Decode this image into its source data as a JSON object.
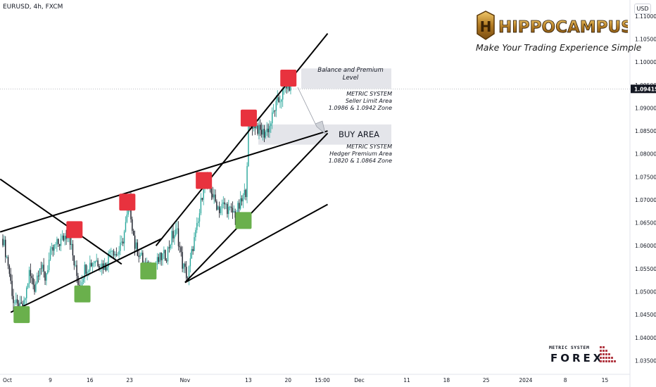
{
  "header": {
    "symbol": "EURUSD, 4h, FXCM",
    "currency": "USD"
  },
  "brand": {
    "name": "HIPPOCAMPUS AI",
    "tagline": "Make Your Trading Experience Simple",
    "logo_letter": "H"
  },
  "watermark": {
    "line1": "METRIC SYSTEM",
    "line2": "FOREX"
  },
  "annotations": {
    "balance_label": [
      "Balance and Premium",
      "Level"
    ],
    "seller_block": [
      "METRIC SYSTEM",
      "Seller Limit Area",
      "1.0986 & 1.0942 Zone"
    ],
    "buy_label": "BUY AREA",
    "hedger_block": [
      "METRIC SYSTEM",
      "Hedger Premium Area",
      "1.0820 & 1.0864 Zone"
    ]
  },
  "chart_data": {
    "type": "candlestick",
    "title": "EURUSD, 4h, FXCM",
    "x_ticks": [
      {
        "label": "Oct",
        "bar": 0
      },
      {
        "label": "9",
        "bar": 36
      },
      {
        "label": "16",
        "bar": 66
      },
      {
        "label": "23",
        "bar": 96
      },
      {
        "label": "Nov",
        "bar": 138
      },
      {
        "label": "13",
        "bar": 186
      },
      {
        "label": "20",
        "bar": 216
      },
      {
        "label": "15:00",
        "bar": 242
      },
      {
        "label": "Dec",
        "bar": 270
      },
      {
        "label": "11",
        "bar": 306
      },
      {
        "label": "18",
        "bar": 336
      },
      {
        "label": "25",
        "bar": 366
      },
      {
        "label": "2024",
        "bar": 396
      },
      {
        "label": "8",
        "bar": 426
      },
      {
        "label": "15",
        "bar": 456
      }
    ],
    "y_ticks": [
      1.035,
      1.04,
      1.045,
      1.05,
      1.055,
      1.06,
      1.065,
      1.07,
      1.075,
      1.08,
      1.085,
      1.09,
      1.095,
      1.1,
      1.105,
      1.11
    ],
    "ylim": [
      1.032,
      1.1135
    ],
    "last_price": 1.09415,
    "last_price_label": "1.09415",
    "colors": {
      "up": "#26a69a",
      "down": "#131722",
      "sell_box": "#e8323e",
      "buy_box": "#6ab04c",
      "price_tag": "#131722"
    },
    "price_path": [
      [
        0,
        1.0615
      ],
      [
        4,
        1.056
      ],
      [
        8,
        1.048
      ],
      [
        12,
        1.046
      ],
      [
        16,
        1.047
      ],
      [
        20,
        1.054
      ],
      [
        24,
        1.051
      ],
      [
        28,
        1.056
      ],
      [
        32,
        1.053
      ],
      [
        36,
        1.058
      ],
      [
        40,
        1.06
      ],
      [
        44,
        1.061
      ],
      [
        48,
        1.0625
      ],
      [
        50,
        1.063
      ],
      [
        54,
        1.056
      ],
      [
        58,
        1.051
      ],
      [
        62,
        1.055
      ],
      [
        66,
        1.056
      ],
      [
        70,
        1.057
      ],
      [
        74,
        1.056
      ],
      [
        78,
        1.0555
      ],
      [
        82,
        1.06
      ],
      [
        86,
        1.058
      ],
      [
        90,
        1.06
      ],
      [
        94,
        1.066
      ],
      [
        96,
        1.069
      ],
      [
        100,
        1.06
      ],
      [
        104,
        1.058
      ],
      [
        108,
        1.0555
      ],
      [
        112,
        1.0545
      ],
      [
        116,
        1.056
      ],
      [
        120,
        1.0575
      ],
      [
        124,
        1.058
      ],
      [
        128,
        1.062
      ],
      [
        132,
        1.063
      ],
      [
        136,
        1.056
      ],
      [
        140,
        1.053
      ],
      [
        144,
        1.06
      ],
      [
        148,
        1.065
      ],
      [
        152,
        1.0735
      ],
      [
        156,
        1.074
      ],
      [
        160,
        1.07
      ],
      [
        164,
        1.068
      ],
      [
        168,
        1.069
      ],
      [
        172,
        1.0675
      ],
      [
        176,
        1.067
      ],
      [
        180,
        1.069
      ],
      [
        184,
        1.072
      ],
      [
        186,
        1.085
      ],
      [
        190,
        1.087
      ],
      [
        194,
        1.085
      ],
      [
        198,
        1.0845
      ],
      [
        202,
        1.086
      ],
      [
        206,
        1.09
      ],
      [
        210,
        1.092
      ],
      [
        214,
        1.0945
      ],
      [
        216,
        1.0955
      ],
      [
        218,
        1.0942
      ]
    ],
    "trendlines": [
      {
        "from": [
          -2,
          1.0745
        ],
        "to": [
          90,
          1.056
        ]
      },
      {
        "from": [
          -2,
          1.063
        ],
        "to": [
          246,
          1.085
        ]
      },
      {
        "from": [
          6,
          1.0455
        ],
        "to": [
          120,
          1.0615
        ]
      },
      {
        "from": [
          138,
          1.052
        ],
        "to": [
          246,
          1.069
        ]
      },
      {
        "from": [
          138,
          1.052
        ],
        "to": [
          246,
          1.0845
        ]
      },
      {
        "from": [
          116,
          1.06
        ],
        "to": [
          246,
          1.1062
        ]
      }
    ],
    "sell_boxes": [
      [
        54,
        1.0635
      ],
      [
        94,
        1.0695
      ],
      [
        152,
        1.0742
      ],
      [
        186,
        1.0878
      ],
      [
        216,
        1.0965
      ]
    ],
    "buy_boxes": [
      [
        14,
        1.045
      ],
      [
        60,
        1.0495
      ],
      [
        110,
        1.0545
      ],
      [
        182,
        1.0655
      ]
    ],
    "balance_zone": [
      1.0942,
      1.0986
    ],
    "buy_zone": [
      1.082,
      1.0864
    ]
  }
}
